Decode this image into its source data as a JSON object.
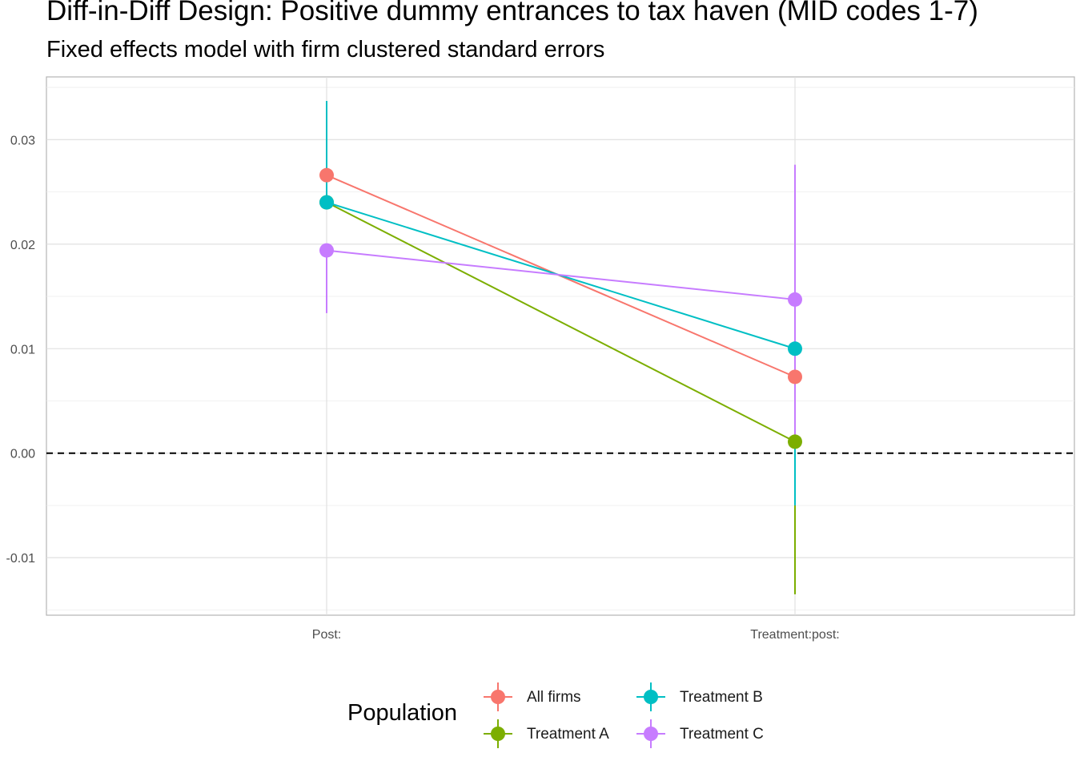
{
  "chart_data": {
    "type": "line",
    "title": "Diff-in-Diff Design: Positive dummy entrances to tax haven (MID codes 1-7)",
    "subtitle": "Fixed effects model with firm clustered standard errors",
    "xlabel": "",
    "ylabel": "",
    "categories": [
      "Post:",
      "Treatment:post:"
    ],
    "ylim": [
      -0.0155,
      0.036
    ],
    "y_ticks": [
      -0.01,
      0.0,
      0.01,
      0.02,
      0.03
    ],
    "y_tick_labels": [
      "-0.01",
      "0.00",
      "0.01",
      "0.02",
      "0.03"
    ],
    "reference_line": {
      "y": 0.0,
      "style": "dashed"
    },
    "grid": true,
    "legend_title": "Population",
    "legend_position": "bottom",
    "series": [
      {
        "name": "All firms",
        "color": "#F8766D",
        "values": [
          0.0266,
          0.0073
        ],
        "ci_low": [
          0.0266,
          0.0073
        ],
        "ci_high": [
          0.0266,
          0.0073
        ]
      },
      {
        "name": "Treatment A",
        "color": "#7CAE00",
        "values": [
          0.024,
          0.0011
        ],
        "ci_low": [
          0.024,
          -0.0135
        ],
        "ci_high": [
          0.024,
          0.0011
        ]
      },
      {
        "name": "Treatment B",
        "color": "#00BFC4",
        "values": [
          0.024,
          0.01
        ],
        "ci_low": [
          0.024,
          -0.005
        ],
        "ci_high": [
          0.0337,
          0.01
        ]
      },
      {
        "name": "Treatment C",
        "color": "#C77CFF",
        "values": [
          0.0194,
          0.0147
        ],
        "ci_low": [
          0.0134,
          0.0011
        ],
        "ci_high": [
          0.0194,
          0.0276
        ]
      }
    ]
  }
}
